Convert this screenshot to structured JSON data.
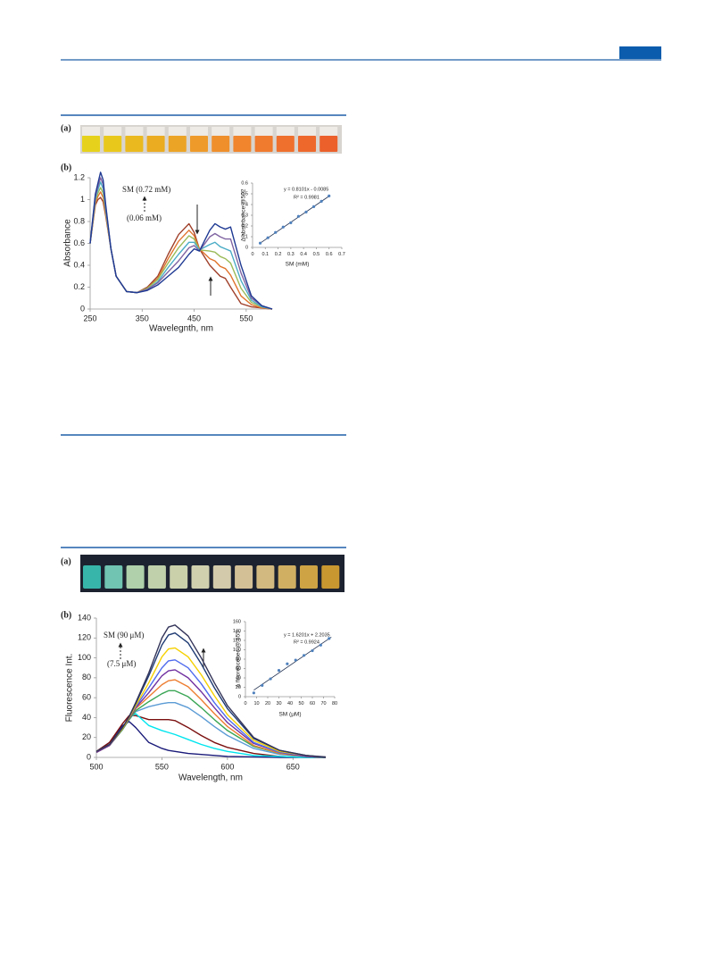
{
  "panels": [
    "(a)",
    "(b)",
    "(a)",
    "(b)"
  ],
  "chart_data": [
    {
      "type": "line",
      "x_label": "Wavelegnth, nm",
      "y_label": "Absorbance",
      "annotations": [
        "SM (0.72 mM)",
        "(0.06  mM)"
      ],
      "x": [
        250,
        260,
        265,
        270,
        275,
        280,
        290,
        300,
        320,
        340,
        360,
        380,
        400,
        420,
        440,
        450,
        460,
        480,
        490,
        500,
        510,
        520,
        540,
        560,
        580,
        600
      ],
      "series": [
        {
          "color": "#a0402a",
          "values": [
            0.6,
            0.95,
            1.0,
            1.02,
            0.98,
            0.85,
            0.55,
            0.3,
            0.16,
            0.15,
            0.2,
            0.3,
            0.5,
            0.68,
            0.78,
            0.7,
            0.55,
            0.4,
            0.35,
            0.3,
            0.28,
            0.2,
            0.05,
            0.02,
            0.01,
            0
          ]
        },
        {
          "color": "#e0732c",
          "values": [
            0.6,
            0.97,
            1.03,
            1.07,
            1.02,
            0.87,
            0.55,
            0.3,
            0.16,
            0.15,
            0.19,
            0.28,
            0.46,
            0.62,
            0.72,
            0.67,
            0.55,
            0.46,
            0.44,
            0.39,
            0.37,
            0.31,
            0.12,
            0.04,
            0.01,
            0
          ]
        },
        {
          "color": "#9bbb59",
          "values": [
            0.6,
            0.99,
            1.06,
            1.11,
            1.06,
            0.89,
            0.55,
            0.3,
            0.16,
            0.15,
            0.19,
            0.27,
            0.42,
            0.56,
            0.67,
            0.64,
            0.54,
            0.53,
            0.52,
            0.48,
            0.46,
            0.42,
            0.19,
            0.06,
            0.02,
            0
          ]
        },
        {
          "color": "#4bacc6",
          "values": [
            0.6,
            1.01,
            1.09,
            1.16,
            1.1,
            0.91,
            0.55,
            0.3,
            0.16,
            0.15,
            0.18,
            0.25,
            0.38,
            0.5,
            0.61,
            0.61,
            0.54,
            0.59,
            0.61,
            0.57,
            0.55,
            0.53,
            0.26,
            0.08,
            0.02,
            0
          ]
        },
        {
          "color": "#8064a2",
          "values": [
            0.6,
            1.03,
            1.12,
            1.2,
            1.14,
            0.93,
            0.55,
            0.3,
            0.16,
            0.15,
            0.18,
            0.24,
            0.34,
            0.44,
            0.56,
            0.58,
            0.53,
            0.66,
            0.69,
            0.66,
            0.64,
            0.64,
            0.33,
            0.1,
            0.03,
            0
          ]
        },
        {
          "color": "#1f3a93",
          "values": [
            0.6,
            1.05,
            1.15,
            1.25,
            1.18,
            0.95,
            0.55,
            0.3,
            0.16,
            0.15,
            0.17,
            0.22,
            0.3,
            0.38,
            0.5,
            0.55,
            0.53,
            0.72,
            0.78,
            0.75,
            0.73,
            0.75,
            0.4,
            0.12,
            0.03,
            0
          ]
        }
      ],
      "xlim": [
        250,
        600
      ],
      "xticks": [
        250,
        350,
        450,
        550
      ],
      "ylim": [
        0,
        1.2
      ],
      "yticks": [
        0,
        0.2,
        0.4,
        0.6,
        0.8,
        1,
        1.2
      ]
    },
    {
      "type": "scatter",
      "x_label": "SM (mM)",
      "y_label": "Δ absorbance @502",
      "annotations": [
        "y = 0.8101x - 0.0085",
        "R² = 0.9981"
      ],
      "x": [
        0.06,
        0.12,
        0.18,
        0.24,
        0.3,
        0.36,
        0.42,
        0.48,
        0.54,
        0.6
      ],
      "values": [
        0.04,
        0.09,
        0.14,
        0.19,
        0.23,
        0.29,
        0.33,
        0.38,
        0.43,
        0.48
      ],
      "color": "#4f81bd",
      "trendline": {
        "x": [
          0.06,
          0.6
        ],
        "values": [
          0.04,
          0.478
        ]
      },
      "xlim": [
        0,
        0.7
      ],
      "xticks": [
        0,
        0.1,
        0.2,
        0.3,
        0.4,
        0.5,
        0.6,
        0.7
      ],
      "ylim": [
        0,
        0.6
      ],
      "yticks": [
        0,
        0.1,
        0.2,
        0.3,
        0.4,
        0.5,
        0.6
      ]
    },
    {
      "type": "line",
      "x_label": "Wavelength, nm",
      "y_label": "Fluorescence Int.",
      "annotations": [
        "SM (90 μM)",
        "(7.5  μM)"
      ],
      "x": [
        500,
        510,
        520,
        525,
        530,
        540,
        550,
        555,
        560,
        570,
        580,
        590,
        600,
        620,
        640,
        660,
        675
      ],
      "series": [
        {
          "color": "#1a1a7a",
          "values": [
            6,
            15,
            32,
            36,
            30,
            15,
            9,
            7,
            6,
            4,
            3,
            2,
            1,
            0.5,
            0,
            0,
            0
          ]
        },
        {
          "color": "#7b0f0f",
          "values": [
            6,
            15,
            34,
            42,
            42,
            38,
            38,
            38,
            37,
            30,
            22,
            15,
            10,
            4,
            1,
            0,
            0
          ]
        },
        {
          "color": "#00e5ee",
          "values": [
            5,
            13,
            30,
            40,
            44,
            32,
            27,
            25,
            23,
            18,
            13,
            9,
            6,
            2,
            1,
            0,
            0
          ]
        },
        {
          "color": "#5b9bd5",
          "values": [
            5,
            12,
            28,
            38,
            46,
            51,
            54,
            55,
            55,
            50,
            41,
            31,
            22,
            9,
            3,
            1,
            0
          ]
        },
        {
          "color": "#3aa655",
          "values": [
            5,
            12,
            28,
            38,
            47,
            56,
            64,
            67,
            67,
            61,
            50,
            38,
            27,
            11,
            4,
            1,
            0
          ]
        },
        {
          "color": "#ed7d31",
          "values": [
            5,
            12,
            29,
            39,
            49,
            61,
            73,
            77,
            78,
            71,
            58,
            44,
            31,
            12,
            4,
            1,
            0
          ]
        },
        {
          "color": "#7030a0",
          "values": [
            5,
            12,
            29,
            39,
            50,
            65,
            82,
            87,
            88,
            80,
            66,
            50,
            35,
            14,
            5,
            1,
            0
          ]
        },
        {
          "color": "#4f6bed",
          "values": [
            6,
            13,
            29,
            40,
            51,
            70,
            90,
            97,
            98,
            90,
            74,
            55,
            39,
            15,
            5,
            2,
            0
          ]
        },
        {
          "color": "#f5d000",
          "values": [
            6,
            13,
            29,
            40,
            52,
            75,
            101,
            109,
            110,
            101,
            83,
            62,
            43,
            17,
            6,
            2,
            0
          ]
        },
        {
          "color": "#1f3b73",
          "values": [
            6,
            13,
            30,
            41,
            54,
            82,
            113,
            123,
            125,
            115,
            94,
            70,
            49,
            19,
            7,
            2,
            0
          ]
        },
        {
          "color": "#34345a",
          "values": [
            6,
            13,
            30,
            41,
            55,
            85,
            120,
            131,
            133,
            122,
            100,
            75,
            52,
            20,
            7,
            2,
            0.5
          ]
        }
      ],
      "xlim": [
        500,
        675
      ],
      "xticks": [
        500,
        550,
        600,
        650
      ],
      "ylim": [
        0,
        140
      ],
      "yticks": [
        0,
        20,
        40,
        60,
        80,
        100,
        120,
        140
      ]
    },
    {
      "type": "scatter",
      "x_label": "SM (μM)",
      "y_label": "Δ fluorescenec @ 555",
      "annotations": [
        "y = 1.6201x + 2.2035",
        "R² = 0.9924"
      ],
      "x": [
        7.5,
        15,
        22.5,
        30,
        37.5,
        45,
        52.5,
        60,
        67.5,
        75
      ],
      "values": [
        8,
        24,
        38,
        56,
        70,
        78,
        88,
        98,
        110,
        124
      ],
      "color": "#4f81bd",
      "trendline": {
        "x": [
          7.5,
          77
        ],
        "values": [
          14,
          127
        ]
      },
      "xlim": [
        0,
        80
      ],
      "xticks": [
        0,
        10,
        20,
        30,
        40,
        50,
        60,
        70,
        80
      ],
      "ylim": [
        0,
        160
      ],
      "yticks": [
        0,
        20,
        40,
        60,
        80,
        100,
        120,
        140,
        160
      ]
    }
  ]
}
